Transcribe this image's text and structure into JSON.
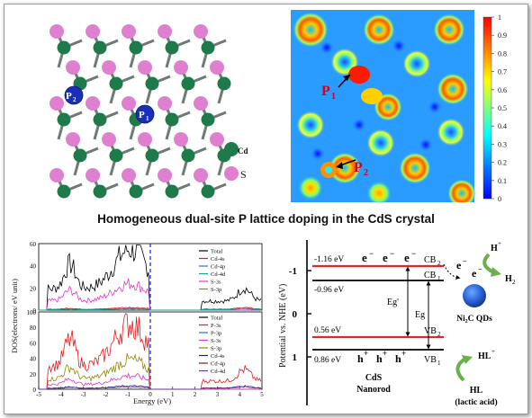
{
  "headline": "Homogeneous dual-site P lattice doping in the CdS crystal",
  "crystal": {
    "site_p2": "P",
    "site_p2_sub": "2",
    "site_p1": "P",
    "site_p1_sub": "1",
    "legend_cd": "Cd",
    "legend_s": "S",
    "colors": {
      "cd": "#1f7a4a",
      "s": "#e07fd0",
      "p": "#1a2fb8",
      "bond": "#6f7a74"
    }
  },
  "elf_map": {
    "label_p1": "P",
    "label_p1_sub": "1",
    "label_p2": "P",
    "label_p2_sub": "2",
    "colorbar_ticks": [
      "1",
      "0.9",
      "0.8",
      "0.7",
      "0.6",
      "0.5",
      "0.4",
      "0.3",
      "0.2",
      "0.1",
      "0"
    ],
    "colorbar_colors": [
      "#ff0000",
      "#ff8000",
      "#ffff00",
      "#80ff80",
      "#00ffff",
      "#0080ff",
      "#0000ff"
    ]
  },
  "dos_chart": {
    "ylabel": "DOS(electrons/ eV unit)",
    "xlabel": "Energy (eV)",
    "top_yticks": [
      "60",
      "40",
      "20",
      "0"
    ],
    "bottom_yticks": [
      "100",
      "80",
      "60",
      "40",
      "20",
      "0"
    ],
    "xticks": [
      "-5",
      "-4",
      "-3",
      "-2",
      "-1",
      "0",
      "1",
      "2",
      "3",
      "4",
      "5"
    ],
    "top_legend": [
      {
        "name": "Total",
        "color": "#000000"
      },
      {
        "name": "Cd-4s",
        "color": "#e41a1c"
      },
      {
        "name": "Cd-4p",
        "color": "#2b6cd8"
      },
      {
        "name": "Cd-4d",
        "color": "#17a88e"
      },
      {
        "name": "S-3s",
        "color": "#e535c9"
      },
      {
        "name": "S-3p",
        "color": "#8f8a00"
      }
    ],
    "bottom_legend": [
      {
        "name": "Total",
        "color": "#000000"
      },
      {
        "name": "P-3s",
        "color": "#e41a1c"
      },
      {
        "name": "P-3p",
        "color": "#2b6cd8"
      },
      {
        "name": "S-3s",
        "color": "#e535c9"
      },
      {
        "name": "S-3p",
        "color": "#8f8a00"
      },
      {
        "name": "Cd-4s",
        "color": "#1a1a9a"
      },
      {
        "name": "Cd-4p",
        "color": "#7a1a2a"
      },
      {
        "name": "Cd-4d",
        "color": "#6a3aa0"
      }
    ]
  },
  "band_diagram": {
    "ylabel": "Potential vs. NHE (eV)",
    "yticks": [
      "-1",
      "0",
      "1"
    ],
    "cb2_value": "-1.16 eV",
    "cb1_value": "-0.96 eV",
    "vb2_value": "0.56 eV",
    "vb1_value": "0.86 eV",
    "cb2": "CB",
    "cb2_sub": "2",
    "cb1": "CB",
    "cb1_sub": "1",
    "vb2": "VB",
    "vb2_sub": "2",
    "vb1": "VB",
    "vb1_sub": "1",
    "eg_prime": "Eg'",
    "eg": "Eg",
    "electron": "e",
    "electron_sup": "−",
    "hole": "h",
    "hole_sup": "+",
    "material_line1": "CdS",
    "material_line2": "Nanorod",
    "cocatalyst": "Ni₂C QDs",
    "proton": "H",
    "proton_sup": "+",
    "hydrogen": "H",
    "hydrogen_sub": "2",
    "oxidized": "HL",
    "oxidized_sup": "+",
    "sacrificial_line1": "HL",
    "sacrificial_line2": "(lactic acid)"
  }
}
